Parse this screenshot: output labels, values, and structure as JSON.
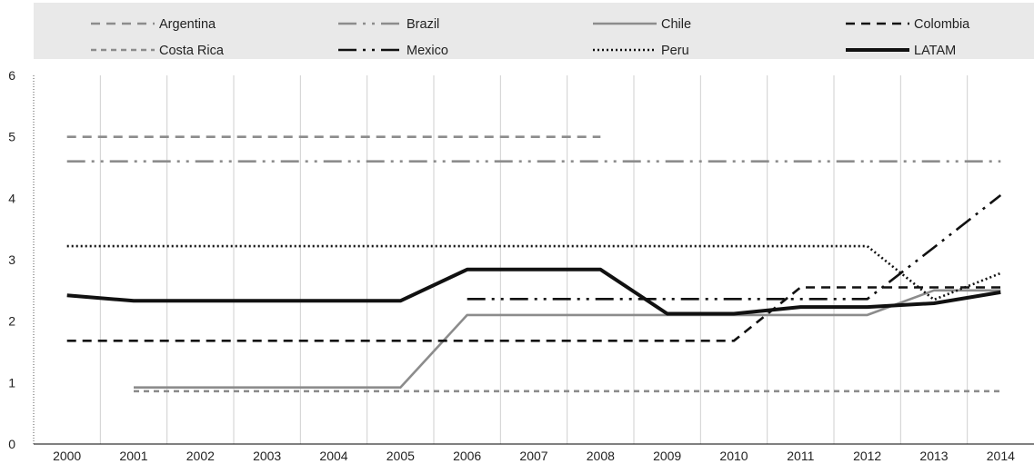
{
  "chart_data": {
    "type": "line",
    "title": "",
    "xlabel": "",
    "ylabel": "",
    "x": [
      2000,
      2001,
      2002,
      2003,
      2004,
      2005,
      2006,
      2007,
      2008,
      2009,
      2010,
      2011,
      2012,
      2013,
      2014
    ],
    "x_tick_labels": [
      "2000",
      "2001",
      "2002",
      "2003",
      "2004",
      "2005",
      "2006",
      "2007",
      "2008",
      "2009",
      "2010",
      "2011",
      "2012",
      "2013",
      "2014"
    ],
    "ylim": [
      0,
      6
    ],
    "y_ticks": [
      "0",
      "1",
      "2",
      "3",
      "4",
      "5",
      "6"
    ],
    "grid": "vertical",
    "legend_position": "top",
    "series": [
      {
        "name": "Argentina",
        "color": "#8c8c8c",
        "style": "dashed",
        "values": [
          5.0,
          5.0,
          5.0,
          5.0,
          5.0,
          5.0,
          5.0,
          5.0,
          5.0,
          null,
          null,
          null,
          null,
          null,
          null
        ]
      },
      {
        "name": "Brazil",
        "color": "#8c8c8c",
        "style": "dash-dot-dot",
        "values": [
          4.6,
          4.6,
          4.6,
          4.6,
          4.6,
          4.6,
          4.6,
          4.6,
          4.6,
          4.6,
          4.6,
          4.6,
          4.6,
          4.6,
          4.6
        ]
      },
      {
        "name": "Chile",
        "color": "#8c8c8c",
        "style": "solid",
        "values": [
          null,
          0.92,
          0.92,
          0.92,
          0.92,
          0.92,
          2.1,
          2.1,
          2.1,
          2.1,
          2.1,
          2.1,
          2.1,
          2.5,
          2.5
        ]
      },
      {
        "name": "Colombia",
        "color": "#111111",
        "style": "dashed",
        "values": [
          1.68,
          1.68,
          1.68,
          1.68,
          1.68,
          1.68,
          1.68,
          1.68,
          1.68,
          1.68,
          1.68,
          2.55,
          2.55,
          2.55,
          2.55
        ]
      },
      {
        "name": "Costa Rica",
        "color": "#8c8c8c",
        "style": "short-dashed",
        "values": [
          null,
          0.86,
          0.86,
          0.86,
          0.86,
          0.86,
          0.86,
          0.86,
          0.86,
          0.86,
          0.86,
          0.86,
          0.86,
          0.86,
          0.86
        ]
      },
      {
        "name": "Mexico",
        "color": "#111111",
        "style": "dash-dot-dot",
        "values": [
          null,
          null,
          null,
          null,
          null,
          null,
          2.36,
          2.36,
          2.36,
          2.36,
          2.36,
          2.36,
          2.36,
          3.2,
          4.05
        ]
      },
      {
        "name": "Peru",
        "color": "#111111",
        "style": "dotted",
        "values": [
          3.22,
          3.22,
          3.22,
          3.22,
          3.22,
          3.22,
          3.22,
          3.22,
          3.22,
          3.22,
          3.22,
          3.22,
          3.22,
          2.35,
          2.78
        ]
      },
      {
        "name": "LATAM",
        "color": "#111111",
        "style": "thick-solid",
        "values": [
          2.42,
          2.33,
          2.33,
          2.33,
          2.33,
          2.33,
          2.84,
          2.84,
          2.84,
          2.12,
          2.12,
          2.23,
          2.23,
          2.29,
          2.47
        ]
      }
    ]
  }
}
